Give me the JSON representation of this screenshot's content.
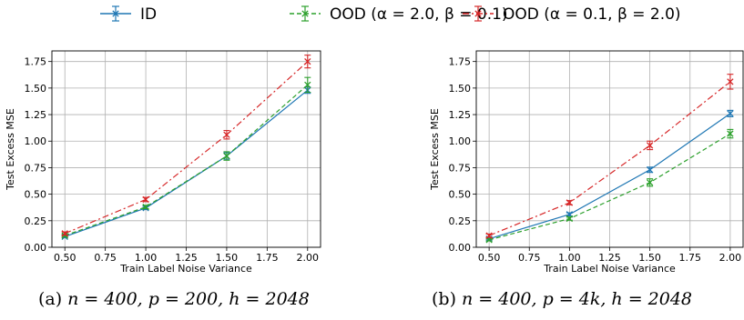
{
  "legend": [
    {
      "label": "ID",
      "color": "#1f77b4",
      "dash": "",
      "marker": "x"
    },
    {
      "label": "OOD (α = 2.0, β = 0.1)",
      "color": "#2ca02c",
      "dash": "5,3",
      "marker": "x"
    },
    {
      "label": "OOD (α = 0.1, β = 2.0)",
      "color": "#d62728",
      "dash": "7,3,2,3",
      "marker": "x"
    }
  ],
  "captions": {
    "a_label": "(a)",
    "a_math": "n = 400, p = 200, h = 2048",
    "b_label": "(b)",
    "b_math": "n = 400, p = 4k, h = 2048"
  },
  "chart_data": [
    {
      "type": "line",
      "xlabel": "Train Label Noise Variance",
      "ylabel": "Test Excess MSE",
      "xlim": [
        0.42,
        2.08
      ],
      "ylim": [
        0,
        1.85
      ],
      "xticks": [
        "0.50",
        "0.75",
        "1.00",
        "1.25",
        "1.50",
        "1.75",
        "2.00"
      ],
      "yticks": [
        "0.00",
        "0.25",
        "0.50",
        "0.75",
        "1.00",
        "1.25",
        "1.50",
        "1.75"
      ],
      "grid": true,
      "x": [
        0.5,
        1.0,
        1.5,
        2.0
      ],
      "series": [
        {
          "name": "ID",
          "values": [
            0.1,
            0.37,
            0.86,
            1.48
          ],
          "errors": [
            0.01,
            0.015,
            0.03,
            0.03
          ]
        },
        {
          "name": "OOD (α = 2.0, β = 0.1)",
          "values": [
            0.11,
            0.38,
            0.86,
            1.53
          ],
          "errors": [
            0.01,
            0.015,
            0.04,
            0.07
          ]
        },
        {
          "name": "OOD (α = 0.1, β = 2.0)",
          "values": [
            0.13,
            0.45,
            1.06,
            1.75
          ],
          "errors": [
            0.015,
            0.02,
            0.04,
            0.06
          ]
        }
      ]
    },
    {
      "type": "line",
      "xlabel": "Train Label Noise Variance",
      "ylabel": "Test Excess MSE",
      "xlim": [
        0.42,
        2.08
      ],
      "ylim": [
        0,
        1.85
      ],
      "xticks": [
        "0.50",
        "0.75",
        "1.00",
        "1.25",
        "1.50",
        "1.75",
        "2.00"
      ],
      "yticks": [
        "0.00",
        "0.25",
        "0.50",
        "0.75",
        "1.00",
        "1.25",
        "1.50",
        "1.75"
      ],
      "grid": true,
      "x": [
        0.5,
        1.0,
        1.5,
        2.0
      ],
      "series": [
        {
          "name": "ID",
          "values": [
            0.08,
            0.31,
            0.73,
            1.26
          ],
          "errors": [
            0.01,
            0.015,
            0.025,
            0.03
          ]
        },
        {
          "name": "OOD (α = 2.0, β = 0.1)",
          "values": [
            0.07,
            0.27,
            0.61,
            1.07
          ],
          "errors": [
            0.01,
            0.015,
            0.035,
            0.04
          ]
        },
        {
          "name": "OOD (α = 0.1, β = 2.0)",
          "values": [
            0.11,
            0.42,
            0.96,
            1.56
          ],
          "errors": [
            0.015,
            0.02,
            0.04,
            0.07
          ]
        }
      ]
    }
  ]
}
